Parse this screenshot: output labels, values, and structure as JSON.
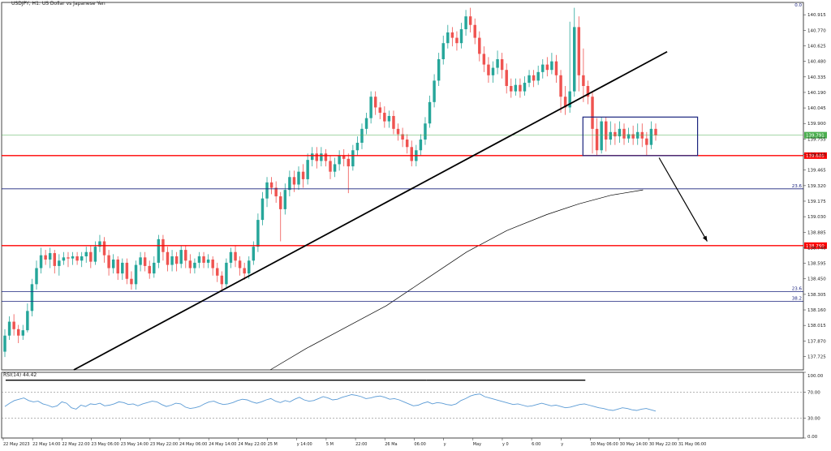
{
  "window": {
    "title": "USDJPY, H1:  US Dollar vs Japanese Yen",
    "corner_label": "0.0"
  },
  "price_axis": {
    "ticks": [
      "140.915",
      "140.770",
      "140.625",
      "140.480",
      "140.335",
      "140.190",
      "140.045",
      "139.900",
      "139.755",
      "139.610",
      "139.465",
      "139.320",
      "139.175",
      "139.030",
      "138.885",
      "138.740",
      "138.595",
      "138.450",
      "138.305",
      "138.160",
      "138.015",
      "137.870",
      "137.725"
    ]
  },
  "rsi_axis": {
    "ticks": [
      "100.00",
      "70.00",
      "30.00",
      "0.00"
    ]
  },
  "time_axis": {
    "labels": [
      "22 May 2023",
      "22 May 14:00",
      "22 May 22:00",
      "23 May 06:00",
      "23 May 14:00",
      "23 May 22:00",
      "24 May 06:00",
      "24 May 14:00",
      "24 May 22:00",
      "25 M",
      "y 14:00",
      "5 M",
      "22:00",
      "26 Ma",
      "06:00",
      "y",
      "May",
      "y 0",
      "6:00",
      "y",
      "30 May 06:00",
      "30 May 14:00",
      "30 May 22:00",
      "31 May 06:00"
    ]
  },
  "colors": {
    "bull": "#26a69a",
    "bear": "#ef5350",
    "support_line": "#ff0000",
    "fib_line": "#1a237e",
    "current_price_line": "#4caf50",
    "rsi_line": "#5b9bd5",
    "ma_line": "#000000",
    "box": "#1a237e"
  },
  "chart_data": {
    "type": "candlestick",
    "symbol": "USDJPY",
    "timeframe": "H1",
    "y_range": [
      137.6,
      141.03
    ],
    "current_price": "139.791",
    "current_price_value": 139.791,
    "support_levels": [
      {
        "label": "139.600",
        "value": 139.6
      },
      {
        "label": "138.760",
        "value": 138.76
      }
    ],
    "fib_levels": [
      {
        "label": "23.6",
        "value": 139.29
      },
      {
        "label": "23.6",
        "value": 138.33
      },
      {
        "label": "38.2",
        "value": 138.24
      }
    ],
    "trendline": {
      "from": [
        0.09,
        137.6
      ],
      "to": [
        0.83,
        140.57
      ]
    },
    "projection_arrow": {
      "from": [
        0.82,
        139.58
      ],
      "to": [
        0.88,
        138.8
      ]
    },
    "consolidation_box": {
      "x": [
        0.725,
        0.868
      ],
      "y": [
        139.6,
        139.96
      ]
    },
    "moving_average": [
      [
        0.335,
        137.6
      ],
      [
        0.38,
        137.8
      ],
      [
        0.43,
        138.0
      ],
      [
        0.48,
        138.2
      ],
      [
        0.53,
        138.45
      ],
      [
        0.58,
        138.7
      ],
      [
        0.63,
        138.9
      ],
      [
        0.68,
        139.05
      ],
      [
        0.72,
        139.15
      ],
      [
        0.76,
        139.23
      ],
      [
        0.8,
        139.28
      ]
    ],
    "rsi": {
      "label": "RSI(14) 44.42",
      "period": 14,
      "value": 44.42,
      "levels": [
        70,
        30
      ],
      "series": [
        48,
        53,
        57,
        59,
        61,
        57,
        55,
        56,
        52,
        50,
        47,
        49,
        55,
        53,
        46,
        44,
        50,
        48,
        52,
        51,
        53,
        49,
        50,
        52,
        55,
        54,
        51,
        52,
        49,
        52,
        54,
        56,
        55,
        51,
        48,
        50,
        53,
        52,
        47,
        45,
        46,
        48,
        52,
        55,
        56,
        53,
        51,
        52,
        54,
        57,
        59,
        58,
        55,
        53,
        55,
        58,
        60,
        56,
        54,
        57,
        55,
        59,
        62,
        58,
        56,
        57,
        60,
        63,
        61,
        58,
        59,
        62,
        64,
        66,
        65,
        63,
        60,
        61,
        63,
        64,
        62,
        59,
        60,
        58,
        55,
        52,
        49,
        50,
        53,
        55,
        52,
        54,
        53,
        51,
        50,
        52,
        57,
        60,
        64,
        66,
        67,
        63,
        61,
        59,
        57,
        55,
        53,
        51,
        52,
        50,
        48,
        49,
        51,
        53,
        51,
        49,
        50,
        48,
        46,
        47,
        49,
        51,
        52,
        50,
        48,
        46,
        45,
        43,
        42,
        44,
        46,
        45,
        43,
        42,
        44,
        45,
        43,
        41
      ]
    },
    "candles": [
      [
        137.77,
        137.92,
        137.98,
        137.72
      ],
      [
        137.92,
        138.05,
        138.1,
        137.88
      ],
      [
        138.05,
        137.98,
        138.12,
        137.92
      ],
      [
        137.98,
        137.92,
        138.02,
        137.85
      ],
      [
        137.92,
        137.97,
        138.02,
        137.88
      ],
      [
        137.97,
        138.15,
        138.22,
        137.95
      ],
      [
        138.15,
        138.4,
        138.45,
        138.1
      ],
      [
        138.4,
        138.55,
        138.62,
        138.35
      ],
      [
        138.55,
        138.67,
        138.74,
        138.5
      ],
      [
        138.67,
        138.63,
        138.72,
        138.58
      ],
      [
        138.63,
        138.69,
        138.74,
        138.55
      ],
      [
        138.69,
        138.57,
        138.72,
        138.5
      ],
      [
        138.57,
        138.62,
        138.68,
        138.48
      ],
      [
        138.62,
        138.65,
        138.7,
        138.58
      ],
      [
        138.65,
        138.64,
        138.7,
        138.56
      ],
      [
        138.64,
        138.66,
        138.7,
        138.58
      ],
      [
        138.66,
        138.62,
        138.7,
        138.58
      ],
      [
        138.62,
        138.66,
        138.7,
        138.56
      ],
      [
        138.66,
        138.7,
        138.75,
        138.6
      ],
      [
        138.7,
        138.61,
        138.76,
        138.55
      ],
      [
        138.61,
        138.75,
        138.8,
        138.58
      ],
      [
        138.75,
        138.8,
        138.86,
        138.7
      ],
      [
        138.8,
        138.67,
        138.84,
        138.6
      ],
      [
        138.67,
        138.55,
        138.72,
        138.48
      ],
      [
        138.55,
        138.63,
        138.68,
        138.5
      ],
      [
        138.63,
        138.5,
        138.66,
        138.44
      ],
      [
        138.5,
        138.6,
        138.64,
        138.44
      ],
      [
        138.6,
        138.45,
        138.64,
        138.4
      ],
      [
        138.45,
        138.4,
        138.52,
        138.35
      ],
      [
        138.4,
        138.58,
        138.62,
        138.35
      ],
      [
        138.58,
        138.65,
        138.7,
        138.52
      ],
      [
        138.65,
        138.57,
        138.7,
        138.52
      ],
      [
        138.57,
        138.5,
        138.62,
        138.45
      ],
      [
        138.5,
        138.6,
        138.66,
        138.46
      ],
      [
        138.6,
        138.82,
        138.86,
        138.55
      ],
      [
        138.82,
        138.7,
        138.86,
        138.62
      ],
      [
        138.7,
        138.58,
        138.75,
        138.52
      ],
      [
        138.58,
        138.66,
        138.72,
        138.52
      ],
      [
        138.66,
        138.59,
        138.7,
        138.52
      ],
      [
        138.59,
        138.72,
        138.76,
        138.55
      ],
      [
        138.72,
        138.62,
        138.76,
        138.55
      ],
      [
        138.62,
        138.55,
        138.68,
        138.5
      ],
      [
        138.55,
        138.6,
        138.64,
        138.5
      ],
      [
        138.6,
        138.66,
        138.7,
        138.55
      ],
      [
        138.66,
        138.6,
        138.7,
        138.55
      ],
      [
        138.6,
        138.63,
        138.68,
        138.55
      ],
      [
        138.63,
        138.55,
        138.66,
        138.48
      ],
      [
        138.55,
        138.48,
        138.6,
        138.42
      ],
      [
        138.48,
        138.4,
        138.52,
        138.35
      ],
      [
        138.4,
        138.6,
        138.64,
        138.36
      ],
      [
        138.6,
        138.7,
        138.74,
        138.55
      ],
      [
        138.7,
        138.62,
        138.76,
        138.56
      ],
      [
        138.62,
        138.55,
        138.66,
        138.48
      ],
      [
        138.55,
        138.5,
        138.6,
        138.44
      ],
      [
        138.5,
        138.62,
        138.66,
        138.45
      ],
      [
        138.62,
        138.75,
        138.8,
        138.58
      ],
      [
        138.75,
        139.0,
        139.06,
        138.7
      ],
      [
        139.0,
        139.2,
        139.26,
        138.95
      ],
      [
        139.2,
        139.35,
        139.4,
        139.12
      ],
      [
        139.35,
        139.3,
        139.4,
        139.24
      ],
      [
        139.3,
        139.22,
        139.36,
        139.16
      ],
      [
        139.22,
        139.1,
        139.26,
        138.8
      ],
      [
        139.1,
        139.28,
        139.34,
        139.05
      ],
      [
        139.28,
        139.4,
        139.46,
        139.22
      ],
      [
        139.4,
        139.33,
        139.46,
        139.26
      ],
      [
        139.33,
        139.45,
        139.5,
        139.28
      ],
      [
        139.45,
        139.38,
        139.52,
        139.3
      ],
      [
        139.38,
        139.56,
        139.62,
        139.33
      ],
      [
        139.56,
        139.62,
        139.68,
        139.5
      ],
      [
        139.62,
        139.55,
        139.68,
        139.48
      ],
      [
        139.55,
        139.62,
        139.68,
        139.5
      ],
      [
        139.62,
        139.55,
        139.66,
        139.5
      ],
      [
        139.55,
        139.45,
        139.6,
        139.38
      ],
      [
        139.45,
        139.52,
        139.58,
        139.4
      ],
      [
        139.52,
        139.6,
        139.65,
        139.46
      ],
      [
        139.6,
        139.57,
        139.66,
        139.5
      ],
      [
        139.57,
        139.5,
        139.62,
        139.25
      ],
      [
        139.5,
        139.65,
        139.7,
        139.46
      ],
      [
        139.65,
        139.72,
        139.78,
        139.6
      ],
      [
        139.72,
        139.85,
        139.9,
        139.66
      ],
      [
        139.85,
        139.95,
        140.0,
        139.8
      ],
      [
        139.95,
        140.15,
        140.2,
        139.9
      ],
      [
        140.15,
        140.05,
        140.2,
        139.98
      ],
      [
        140.05,
        140.0,
        140.1,
        139.94
      ],
      [
        140.0,
        139.92,
        140.06,
        139.86
      ],
      [
        139.92,
        139.97,
        140.02,
        139.86
      ],
      [
        139.97,
        139.85,
        140.02,
        139.8
      ],
      [
        139.85,
        139.8,
        139.9,
        139.74
      ],
      [
        139.8,
        139.75,
        139.86,
        139.68
      ],
      [
        139.75,
        139.68,
        139.8,
        139.62
      ],
      [
        139.68,
        139.55,
        139.74,
        139.5
      ],
      [
        139.55,
        139.65,
        139.7,
        139.5
      ],
      [
        139.65,
        139.75,
        139.8,
        139.6
      ],
      [
        139.75,
        139.9,
        139.96,
        139.7
      ],
      [
        139.9,
        140.1,
        140.16,
        139.86
      ],
      [
        140.1,
        140.3,
        140.36,
        140.05
      ],
      [
        140.3,
        140.5,
        140.56,
        140.25
      ],
      [
        140.5,
        140.65,
        140.72,
        140.45
      ],
      [
        140.65,
        140.75,
        140.82,
        140.6
      ],
      [
        140.75,
        140.7,
        140.8,
        140.62
      ],
      [
        140.7,
        140.65,
        140.76,
        140.58
      ],
      [
        140.65,
        140.78,
        140.84,
        140.6
      ],
      [
        140.78,
        140.9,
        140.96,
        140.72
      ],
      [
        140.9,
        140.82,
        140.98,
        140.75
      ],
      [
        140.82,
        140.7,
        140.88,
        140.64
      ],
      [
        140.7,
        140.55,
        140.76,
        140.48
      ],
      [
        140.55,
        140.45,
        140.62,
        140.38
      ],
      [
        140.45,
        140.35,
        140.52,
        140.28
      ],
      [
        140.35,
        140.42,
        140.48,
        140.28
      ],
      [
        140.42,
        140.5,
        140.58,
        140.36
      ],
      [
        140.5,
        140.4,
        140.56,
        140.32
      ],
      [
        140.4,
        140.25,
        140.46,
        140.18
      ],
      [
        140.25,
        140.2,
        140.32,
        140.14
      ],
      [
        140.2,
        140.26,
        140.32,
        140.16
      ],
      [
        140.26,
        140.2,
        140.32,
        140.14
      ],
      [
        140.2,
        140.28,
        140.34,
        140.16
      ],
      [
        140.28,
        140.35,
        140.4,
        140.24
      ],
      [
        140.35,
        140.3,
        140.4,
        140.24
      ],
      [
        140.3,
        140.38,
        140.44,
        140.26
      ],
      [
        140.38,
        140.45,
        140.5,
        140.32
      ],
      [
        140.45,
        140.4,
        140.52,
        140.34
      ],
      [
        140.4,
        140.48,
        140.56,
        140.36
      ],
      [
        140.48,
        140.35,
        140.54,
        140.28
      ],
      [
        140.35,
        140.15,
        140.4,
        140.0
      ],
      [
        140.15,
        140.05,
        140.25,
        139.98
      ],
      [
        140.05,
        140.2,
        140.85,
        140.0
      ],
      [
        140.2,
        140.8,
        140.98,
        140.15
      ],
      [
        140.8,
        140.35,
        140.9,
        140.2
      ],
      [
        140.35,
        140.25,
        140.6,
        140.1
      ],
      [
        140.25,
        140.15,
        140.3,
        140.08
      ],
      [
        140.15,
        139.85,
        140.2,
        139.62
      ],
      [
        139.85,
        139.65,
        139.95,
        139.6
      ],
      [
        139.65,
        139.92,
        139.96,
        139.62
      ],
      [
        139.92,
        139.75,
        139.96,
        139.64
      ],
      [
        139.75,
        139.82,
        139.92,
        139.7
      ],
      [
        139.82,
        139.78,
        139.9,
        139.7
      ],
      [
        139.78,
        139.85,
        139.92,
        139.72
      ],
      [
        139.85,
        139.76,
        139.9,
        139.7
      ],
      [
        139.76,
        139.8,
        139.86,
        139.72
      ],
      [
        139.8,
        139.76,
        139.88,
        139.7
      ],
      [
        139.76,
        139.82,
        139.9,
        139.7
      ],
      [
        139.82,
        139.76,
        139.9,
        139.68
      ],
      [
        139.76,
        139.7,
        139.82,
        139.6
      ],
      [
        139.7,
        139.85,
        139.92,
        139.66
      ],
      [
        139.85,
        139.79,
        139.9,
        139.74
      ]
    ]
  }
}
